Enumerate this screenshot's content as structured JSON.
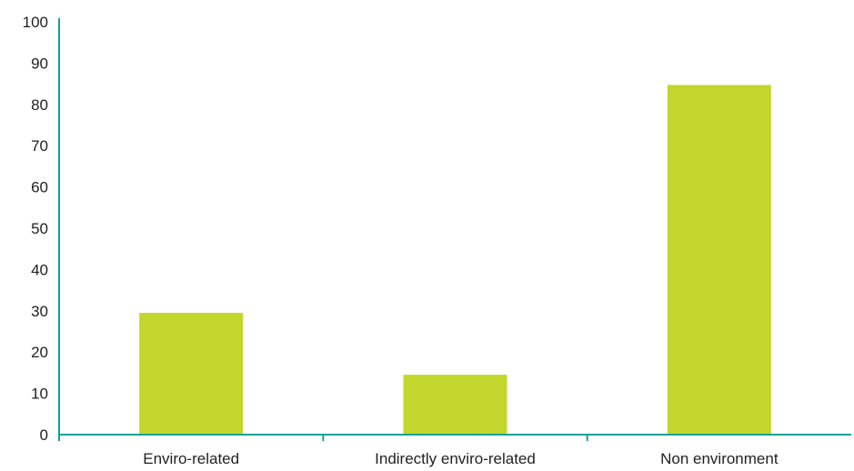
{
  "chart_data": {
    "type": "bar",
    "title": "",
    "xlabel": "",
    "ylabel": "",
    "categories": [
      "Enviro-related",
      "Indirectly enviro-related",
      "Non environment"
    ],
    "values": [
      29.5,
      14.5,
      84.7
    ],
    "ylim": [
      0,
      100
    ],
    "yticks": [
      0,
      10,
      20,
      30,
      40,
      50,
      60,
      70,
      80,
      90,
      100
    ],
    "grid": false,
    "legend": "none",
    "colors": {
      "bar": "#c2d62e",
      "axis": "#13a19a",
      "text": "#222222"
    }
  }
}
